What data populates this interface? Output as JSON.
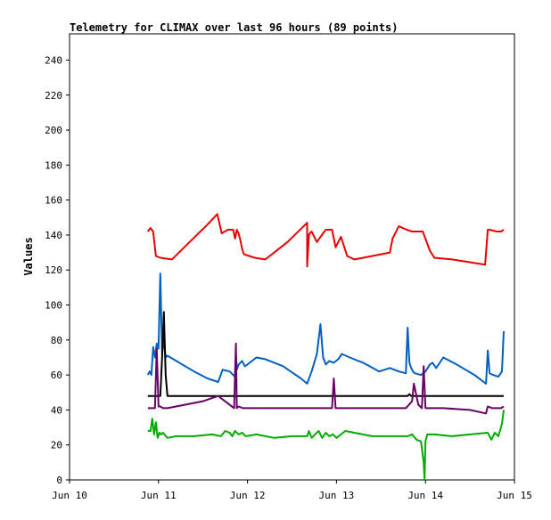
{
  "chart_data": {
    "type": "line",
    "title": "Telemetry for CLIMAX over last 96 hours (89 points)",
    "xlabel": "",
    "ylabel": "Values",
    "xlim": [
      10,
      15
    ],
    "ylim": [
      0,
      255
    ],
    "x_ticks": [
      {
        "value": 10,
        "label": "Jun 10"
      },
      {
        "value": 11,
        "label": "Jun 11"
      },
      {
        "value": 12,
        "label": "Jun 12"
      },
      {
        "value": 13,
        "label": "Jun 13"
      },
      {
        "value": 14,
        "label": "Jun 14"
      },
      {
        "value": 15,
        "label": "Jun 15"
      }
    ],
    "y_ticks": [
      0,
      20,
      40,
      60,
      80,
      100,
      120,
      140,
      160,
      180,
      200,
      220,
      240
    ],
    "grid": false,
    "legend": "none",
    "series": [
      {
        "color": "#e60000",
        "x": [
          10.88,
          10.91,
          10.94,
          10.97,
          11.02,
          11.15,
          11.35,
          11.55,
          11.66,
          11.71,
          11.78,
          11.84,
          11.86,
          11.88,
          11.9,
          11.92,
          11.94,
          11.96,
          12.02,
          12.08,
          12.2,
          12.45,
          12.67,
          12.67,
          12.69,
          12.7,
          12.72,
          12.78,
          12.85,
          12.88,
          12.95,
          12.99,
          13.05,
          13.12,
          13.2,
          13.3,
          13.6,
          13.63,
          13.7,
          13.79,
          13.85,
          13.97,
          14.05,
          14.1,
          14.3,
          14.67,
          14.7,
          14.72,
          14.8,
          14.85,
          14.88
        ],
        "y": [
          142,
          144,
          142,
          128,
          127,
          126,
          136,
          146,
          152,
          141,
          143,
          143,
          138,
          143,
          141,
          137,
          132,
          129,
          128,
          127,
          126,
          136,
          147,
          122,
          140,
          141,
          142,
          136,
          141,
          143,
          143,
          133,
          139,
          128,
          126,
          127,
          130,
          138,
          145,
          143,
          142,
          142,
          131,
          127,
          126,
          123,
          143,
          143,
          142,
          142,
          143
        ]
      },
      {
        "color": "#0060c0",
        "x": [
          10.88,
          10.9,
          10.92,
          10.94,
          10.96,
          10.98,
          11.0,
          11.02,
          11.04,
          11.06,
          11.08,
          11.1,
          11.2,
          11.3,
          11.4,
          11.55,
          11.67,
          11.72,
          11.8,
          11.86,
          11.87,
          11.88,
          11.9,
          11.94,
          11.97,
          12.0,
          12.1,
          12.2,
          12.4,
          12.6,
          12.67,
          12.72,
          12.78,
          12.82,
          12.85,
          12.88,
          12.92,
          12.97,
          13.02,
          13.06,
          13.15,
          13.3,
          13.48,
          13.6,
          13.7,
          13.78,
          13.8,
          13.82,
          13.84,
          13.86,
          13.88,
          13.95,
          14.0,
          14.05,
          14.08,
          14.12,
          14.2,
          14.35,
          14.55,
          14.68,
          14.7,
          14.72,
          14.76,
          14.82,
          14.86,
          14.88
        ],
        "y": [
          60,
          62,
          60,
          76,
          70,
          78,
          75,
          118,
          72,
          80,
          70,
          71,
          68,
          65,
          62,
          58,
          56,
          63,
          62,
          59,
          72,
          63,
          66,
          68,
          65,
          66,
          70,
          69,
          65,
          58,
          55,
          62,
          72,
          89,
          70,
          66,
          68,
          67,
          69,
          72,
          70,
          67,
          62,
          64,
          62,
          61,
          87,
          67,
          64,
          62,
          61,
          60,
          62,
          66,
          67,
          64,
          70,
          66,
          60,
          55,
          74,
          61,
          60,
          59,
          62,
          85
        ]
      },
      {
        "color": "#000000",
        "x": [
          10.88,
          11.02,
          11.04,
          11.06,
          11.08,
          11.1,
          13.8,
          13.82,
          13.84,
          14.88
        ],
        "y": [
          48,
          48,
          70,
          96,
          60,
          48,
          48,
          49,
          48,
          48
        ]
      },
      {
        "color": "#660066",
        "x": [
          10.88,
          10.96,
          10.98,
          11.0,
          11.02,
          11.05,
          11.1,
          11.3,
          11.5,
          11.67,
          11.85,
          11.87,
          11.88,
          11.9,
          11.95,
          12.2,
          12.5,
          12.78,
          12.95,
          12.97,
          12.99,
          13.1,
          13.5,
          13.78,
          13.85,
          13.87,
          13.92,
          13.96,
          13.98,
          14.0,
          14.2,
          14.5,
          14.68,
          14.7,
          14.75,
          14.85,
          14.88
        ],
        "y": [
          41,
          41,
          75,
          42,
          42,
          41,
          41,
          43,
          45,
          48,
          41,
          78,
          41,
          42,
          41,
          41,
          41,
          41,
          41,
          58,
          41,
          41,
          41,
          41,
          45,
          55,
          43,
          41,
          65,
          41,
          41,
          40,
          38,
          42,
          41,
          41,
          42
        ]
      },
      {
        "color": "#00aa00",
        "x": [
          10.88,
          10.91,
          10.93,
          10.95,
          10.97,
          10.99,
          11.01,
          11.03,
          11.05,
          11.1,
          11.2,
          11.4,
          11.6,
          11.7,
          11.75,
          11.8,
          11.83,
          11.86,
          11.9,
          11.94,
          11.98,
          12.1,
          12.3,
          12.5,
          12.67,
          12.69,
          12.72,
          12.76,
          12.8,
          12.84,
          12.88,
          12.92,
          12.96,
          13.0,
          13.1,
          13.2,
          13.4,
          13.6,
          13.8,
          13.85,
          13.9,
          13.95,
          13.98,
          13.99,
          14.0,
          14.02,
          14.1,
          14.3,
          14.5,
          14.7,
          14.74,
          14.78,
          14.82,
          14.86,
          14.88
        ],
        "y": [
          28,
          28,
          35,
          26,
          33,
          24,
          27,
          26,
          27,
          24,
          25,
          25,
          26,
          25,
          28,
          27,
          25,
          28,
          26,
          27,
          25,
          26,
          24,
          25,
          25,
          28,
          24,
          26,
          28,
          24,
          27,
          25,
          26,
          24,
          28,
          27,
          25,
          25,
          25,
          26,
          23,
          22,
          10,
          0,
          22,
          26,
          26,
          25,
          26,
          27,
          23,
          27,
          25,
          32,
          40
        ]
      }
    ]
  }
}
